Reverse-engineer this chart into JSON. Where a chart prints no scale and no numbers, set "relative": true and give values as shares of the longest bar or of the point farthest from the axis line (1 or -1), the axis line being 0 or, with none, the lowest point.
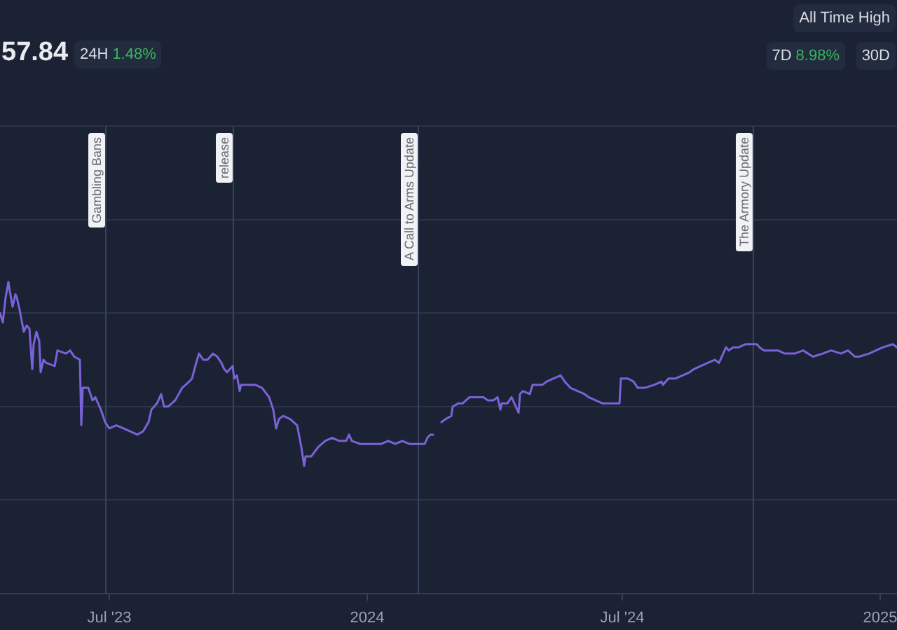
{
  "chart_data": {
    "type": "line",
    "relative": true,
    "x": [
      "2023-04-14",
      "2023-04-16",
      "2023-04-18",
      "2023-04-20",
      "2023-04-21",
      "2023-04-23",
      "2023-04-25",
      "2023-04-26",
      "2023-04-28",
      "2023-05-01",
      "2023-05-03",
      "2023-05-05",
      "2023-05-07",
      "2023-05-08",
      "2023-05-10",
      "2023-05-12",
      "2023-05-13",
      "2023-05-15",
      "2023-05-17",
      "2023-05-23",
      "2023-05-25",
      "2023-05-31",
      "2023-06-03",
      "2023-06-06",
      "2023-06-10",
      "2023-06-11",
      "2023-06-12",
      "2023-06-16",
      "2023-06-19",
      "2023-06-21",
      "2023-06-25",
      "2023-06-28",
      "2023-07-01",
      "2023-07-06",
      "2023-07-11",
      "2023-07-16",
      "2023-07-21",
      "2023-07-25",
      "2023-07-29",
      "2023-07-31",
      "2023-08-04",
      "2023-08-07",
      "2023-08-09",
      "2023-08-12",
      "2023-08-17",
      "2023-08-22",
      "2023-08-27",
      "2023-08-29",
      "2023-09-01",
      "2023-09-03",
      "2023-09-06",
      "2023-09-09",
      "2023-09-13",
      "2023-09-16",
      "2023-09-19",
      "2023-09-21",
      "2023-09-23",
      "2023-09-27",
      "2023-09-28",
      "2023-09-30",
      "2023-10-02",
      "2023-10-03",
      "2023-10-07",
      "2023-10-13",
      "2023-10-18",
      "2023-10-23",
      "2023-10-26",
      "2023-10-28",
      "2023-10-30",
      "2023-11-02",
      "2023-11-07",
      "2023-11-12",
      "2023-11-15",
      "2023-11-17",
      "2023-11-18",
      "2023-11-22",
      "2023-11-27",
      "2023-12-02",
      "2023-12-07",
      "2023-12-12",
      "2023-12-17",
      "2023-12-19",
      "2023-12-21",
      "2023-12-27",
      "2024-01-01",
      "2024-01-06",
      "2024-01-11",
      "2024-01-16",
      "2024-01-21",
      "2024-01-26",
      "2024-01-31",
      "2024-02-06",
      "2024-02-11",
      "2024-02-13",
      "2024-02-15",
      "2024-02-17",
      "2024-02-20",
      "2024-02-23",
      "2024-02-26",
      "2024-03-01",
      "2024-03-02",
      "2024-03-06",
      "2024-03-09",
      "2024-03-14",
      "2024-03-19",
      "2024-03-24",
      "2024-03-27",
      "2024-03-31",
      "2024-04-03",
      "2024-04-05",
      "2024-04-06",
      "2024-04-10",
      "2024-04-13",
      "2024-04-16",
      "2024-04-18",
      "2024-04-19",
      "2024-04-21",
      "2024-04-26",
      "2024-04-28",
      "2024-05-05",
      "2024-05-08",
      "2024-05-13",
      "2024-05-18",
      "2024-05-21",
      "2024-05-25",
      "2024-05-30",
      "2024-06-04",
      "2024-06-07",
      "2024-06-12",
      "2024-06-17",
      "2024-06-24",
      "2024-06-29",
      "2024-06-30",
      "2024-07-05",
      "2024-07-09",
      "2024-07-12",
      "2024-07-17",
      "2024-07-24",
      "2024-07-29",
      "2024-07-30",
      "2024-08-03",
      "2024-08-08",
      "2024-08-13",
      "2024-08-18",
      "2024-08-21",
      "2024-08-26",
      "2024-08-31",
      "2024-09-05",
      "2024-09-08",
      "2024-09-10",
      "2024-09-13",
      "2024-09-15",
      "2024-09-18",
      "2024-09-22",
      "2024-09-27",
      "2024-10-02",
      "2024-10-05",
      "2024-10-07",
      "2024-10-10",
      "2024-10-15",
      "2024-10-20",
      "2024-10-25",
      "2024-11-01",
      "2024-11-07",
      "2024-11-14",
      "2024-11-21",
      "2024-11-27",
      "2024-12-04",
      "2024-12-09",
      "2024-12-14",
      "2024-12-17",
      "2024-12-24",
      "2024-12-29",
      "2025-01-03",
      "2025-01-10",
      "2025-01-13"
    ],
    "series": [
      {
        "color": "#7a62d8",
        "values": [
          0.9,
          0.87,
          0.95,
          1,
          0.97,
          0.92,
          0.96,
          0.95,
          0.91,
          0.84,
          0.86,
          0.85,
          0.72,
          0.8,
          0.84,
          0.81,
          0.71,
          0.75,
          0.74,
          0.73,
          0.78,
          0.77,
          0.78,
          0.76,
          0.75,
          0.54,
          0.66,
          0.66,
          0.62,
          0.63,
          0.59,
          0.55,
          0.53,
          0.54,
          0.53,
          0.52,
          0.51,
          0.52,
          0.55,
          0.59,
          0.61,
          0.64,
          0.6,
          0.6,
          0.62,
          0.66,
          0.68,
          0.69,
          0.74,
          0.77,
          0.75,
          0.75,
          0.77,
          0.76,
          0.74,
          0.72,
          0.71,
          0.73,
          0.69,
          0.7,
          0.65,
          0.67,
          0.67,
          0.67,
          0.66,
          0.63,
          0.59,
          0.53,
          0.56,
          0.57,
          0.56,
          0.54,
          0.47,
          0.41,
          0.44,
          0.44,
          0.47,
          0.49,
          0.5,
          0.49,
          0.49,
          0.51,
          0.49,
          0.48,
          0.48,
          0.48,
          0.48,
          0.49,
          0.48,
          0.49,
          0.48,
          0.48,
          0.48,
          0.5,
          0.51,
          0.51,
          null,
          0.55,
          0.56,
          0.57,
          0.6,
          0.61,
          0.61,
          0.63,
          0.63,
          0.63,
          0.62,
          0.62,
          0.63,
          0.59,
          0.61,
          0.61,
          0.63,
          0.6,
          0.58,
          0.64,
          0.65,
          0.64,
          0.67,
          0.67,
          0.68,
          0.69,
          0.7,
          0.68,
          0.66,
          0.65,
          0.64,
          0.63,
          0.62,
          0.61,
          0.61,
          0.61,
          0.69,
          0.69,
          0.68,
          0.66,
          0.66,
          0.67,
          0.68,
          0.67,
          0.69,
          0.69,
          0.7,
          0.71,
          0.72,
          0.73,
          0.74,
          0.75,
          0.74,
          0.76,
          0.79,
          0.78,
          0.79,
          0.79,
          0.8,
          0.8,
          0.8,
          0.79,
          0.78,
          0.78,
          0.78,
          0.77,
          0.77,
          0.78,
          0.76,
          0.77,
          0.78,
          0.77,
          0.78,
          0.76,
          0.76,
          0.77,
          0.78,
          0.79,
          0.8,
          0.79
        ]
      }
    ],
    "xlim": [
      "2023-04-14",
      "2025-01-13"
    ],
    "xticks": [
      {
        "value": "2023-07-01",
        "label": "Jul '23"
      },
      {
        "value": "2024-01-01",
        "label": "2024"
      },
      {
        "value": "2024-07-01",
        "label": "Jul '24"
      },
      {
        "value": "2025-01-01",
        "label": "2025"
      }
    ],
    "ref_lines": [
      {
        "axis": "x",
        "value": "2023-06-28",
        "label": "Gambling Bans",
        "color": "#38425f"
      },
      {
        "axis": "x",
        "value": "2023-09-27",
        "label": "release",
        "color": "#38425f"
      },
      {
        "axis": "x",
        "value": "2024-02-06",
        "label": "A Call to Arms Update",
        "color": "#38425f"
      },
      {
        "axis": "x",
        "value": "2024-10-02",
        "label": "The Armory Update",
        "color": "#38425f"
      }
    ],
    "grid": "y",
    "marker": "none",
    "line_style": "solid",
    "annotations": [
      "57.84",
      "24H",
      "1.48%",
      "7D",
      "8.98%",
      "30D",
      "All Time High"
    ]
  }
}
